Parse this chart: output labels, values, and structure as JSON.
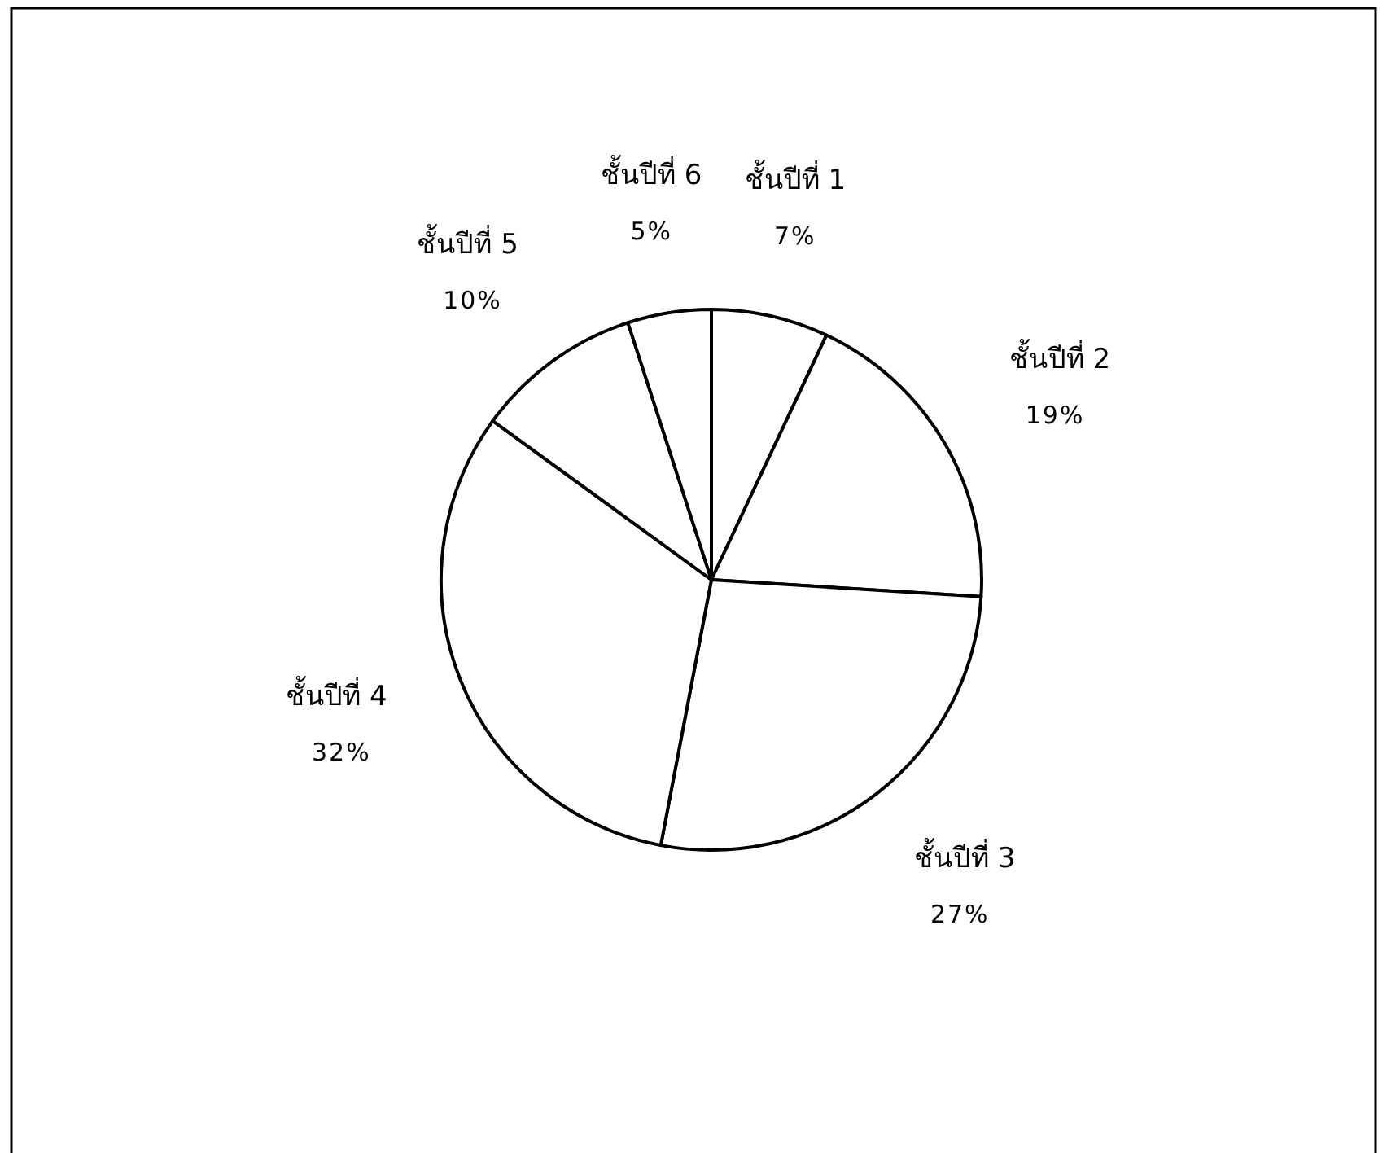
{
  "chart_data": {
    "type": "pie",
    "categories": [
      "ชั้นปีที่ 1",
      "ชั้นปีที่ 2",
      "ชั้นปีที่ 3",
      "ชั้นปีที่ 4",
      "ชั้นปีที่ 5",
      "ชั้นปีที่ 6"
    ],
    "values": [
      7,
      19,
      27,
      32,
      10,
      5
    ],
    "colors": [
      "#ffffff",
      "#ffffff",
      "#ffffff",
      "#ffffff",
      "#ffffff",
      "#ffffff"
    ],
    "value_labels": [
      "7%",
      "19%",
      "27%",
      "32%",
      "10%",
      "5%"
    ]
  }
}
